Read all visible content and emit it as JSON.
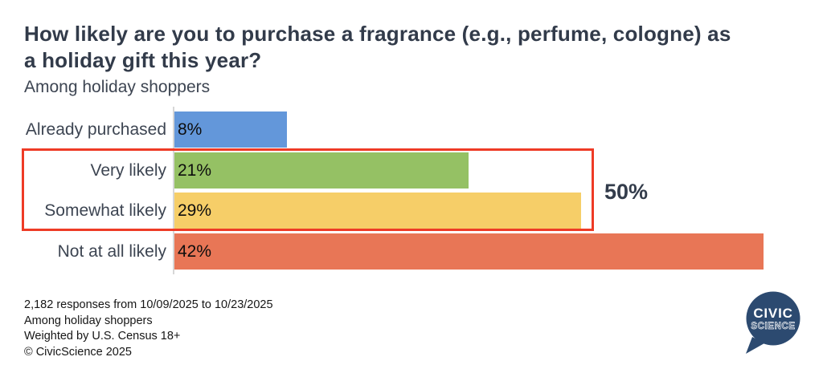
{
  "header": {
    "title_line1": "How likely are you to purchase a fragrance (e.g., perfume, cologne) as",
    "title_line2": "a holiday gift this year?",
    "subtitle": "Among holiday shoppers"
  },
  "chart_data": {
    "type": "bar",
    "orientation": "horizontal",
    "title": "How likely are you to purchase a fragrance (e.g., perfume, cologne) as a holiday gift this year?",
    "subtitle": "Among holiday shoppers",
    "categories": [
      "Already purchased",
      "Very likely",
      "Somewhat likely",
      "Not at all likely"
    ],
    "values": [
      8,
      21,
      29,
      42
    ],
    "value_labels": [
      "8%",
      "21%",
      "29%",
      "42%"
    ],
    "bar_colors": [
      "#6397da",
      "#95c164",
      "#f6ce68",
      "#e87656"
    ],
    "xlim": [
      0,
      44
    ],
    "grid": false,
    "legend": false,
    "highlight": {
      "categories": [
        "Very likely",
        "Somewhat likely"
      ],
      "total_label": "50%",
      "box_color": "#ee3b26"
    }
  },
  "footer": {
    "line1": "2,182 responses from 10/09/2025 to 10/23/2025",
    "line2": "Among holiday shoppers",
    "line3": "Weighted by U.S. Census 18+",
    "line4": "© CivicScience 2025"
  },
  "logo": {
    "word1": "CIVIC",
    "word2": "SCIENCE",
    "bubble_color": "#2c4a70"
  }
}
